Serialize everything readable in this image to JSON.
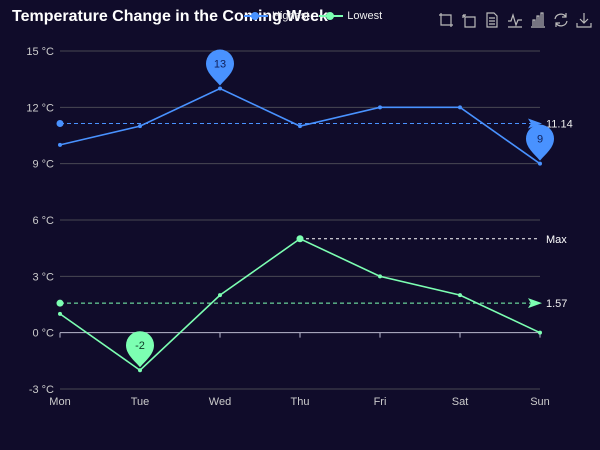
{
  "chart_data": {
    "type": "line",
    "title": "Temperature Change in the Coming Week",
    "categories": [
      "Mon",
      "Tue",
      "Wed",
      "Thu",
      "Fri",
      "Sat",
      "Sun"
    ],
    "y_axis": {
      "min": -3,
      "max": 15,
      "interval": 3,
      "ticks": [
        "-3 °C",
        "0 °C",
        "3 °C",
        "6 °C",
        "9 °C",
        "12 °C",
        "15 °C"
      ]
    },
    "grid": true,
    "legend_position": "top",
    "series": [
      {
        "name": "Highest",
        "color": "#4992ff",
        "values": [
          10,
          11,
          13,
          11,
          12,
          12,
          9
        ],
        "mark_points": [
          {
            "label": "13",
            "index": 2,
            "value": 13
          },
          {
            "label": "9",
            "index": 6,
            "value": 9
          }
        ],
        "mark_line": {
          "label": "11.14",
          "value": 11.14
        }
      },
      {
        "name": "Lowest",
        "color": "#7cffb2",
        "values": [
          1,
          -2,
          2,
          5,
          3,
          2,
          0
        ],
        "mark_points": [
          {
            "label": "-2",
            "index": 1,
            "value": -2
          }
        ],
        "mark_line": {
          "label": "1.57",
          "value": 1.57
        },
        "max_line": {
          "label": "Max",
          "index": 3,
          "value": 5
        }
      }
    ]
  },
  "toolbox": [
    {
      "name": "zoom-icon"
    },
    {
      "name": "zoom-reset-icon"
    },
    {
      "name": "data-view-icon"
    },
    {
      "name": "line-chart-icon"
    },
    {
      "name": "bar-chart-icon"
    },
    {
      "name": "restore-icon"
    },
    {
      "name": "download-icon"
    }
  ]
}
